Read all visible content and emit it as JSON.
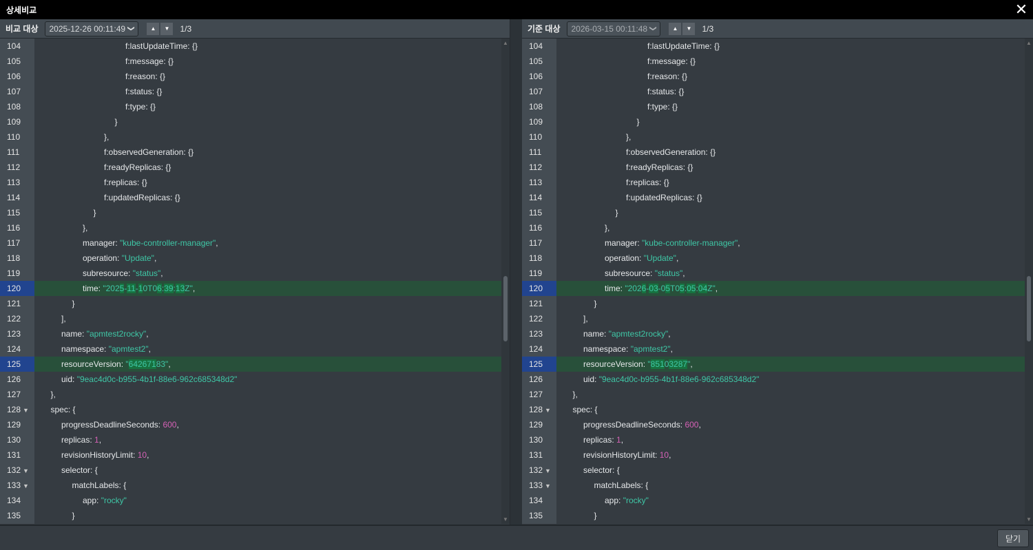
{
  "window": {
    "title": "상세비교",
    "close_icon": "close-icon"
  },
  "left": {
    "label": "비교 대상",
    "selected": "2025-12-26 00:11:49",
    "pager": "1/3",
    "lines": [
      {
        "n": 104,
        "i": 8,
        "k": "f:lastUpdateTime",
        "v": [
          {
            "t": "{}",
            "c": "k"
          }
        ]
      },
      {
        "n": 105,
        "i": 8,
        "k": "f:message",
        "v": [
          {
            "t": "{}",
            "c": "k"
          }
        ]
      },
      {
        "n": 106,
        "i": 8,
        "k": "f:reason",
        "v": [
          {
            "t": "{}",
            "c": "k"
          }
        ]
      },
      {
        "n": 107,
        "i": 8,
        "k": "f:status",
        "v": [
          {
            "t": "{}",
            "c": "k"
          }
        ]
      },
      {
        "n": 108,
        "i": 8,
        "k": "f:type",
        "v": [
          {
            "t": "{}",
            "c": "k"
          }
        ]
      },
      {
        "n": 109,
        "i": 7,
        "raw": "}"
      },
      {
        "n": 110,
        "i": 6,
        "raw": "},"
      },
      {
        "n": 111,
        "i": 6,
        "k": "f:observedGeneration",
        "v": [
          {
            "t": "{}",
            "c": "k"
          }
        ]
      },
      {
        "n": 112,
        "i": 6,
        "k": "f:readyReplicas",
        "v": [
          {
            "t": "{}",
            "c": "k"
          }
        ]
      },
      {
        "n": 113,
        "i": 6,
        "k": "f:replicas",
        "v": [
          {
            "t": "{}",
            "c": "k"
          }
        ]
      },
      {
        "n": 114,
        "i": 6,
        "k": "f:updatedReplicas",
        "v": [
          {
            "t": "{}",
            "c": "k"
          }
        ]
      },
      {
        "n": 115,
        "i": 5,
        "raw": "}"
      },
      {
        "n": 116,
        "i": 4,
        "raw": "},"
      },
      {
        "n": 117,
        "i": 4,
        "k": "manager",
        "v": [
          {
            "t": "\"kube-controller-manager\"",
            "c": "s"
          }
        ],
        "p": ","
      },
      {
        "n": 118,
        "i": 4,
        "k": "operation",
        "v": [
          {
            "t": "\"Update\"",
            "c": "s"
          }
        ],
        "p": ","
      },
      {
        "n": 119,
        "i": 4,
        "k": "subresource",
        "v": [
          {
            "t": "\"status\"",
            "c": "s"
          }
        ],
        "p": ","
      },
      {
        "n": 120,
        "i": 4,
        "k": "time",
        "diff": true,
        "v": [
          {
            "t": "\"202",
            "c": "s"
          },
          {
            "t": "5",
            "c": "s",
            "h": 1
          },
          {
            "t": "-",
            "c": "s"
          },
          {
            "t": "11",
            "c": "s",
            "h": 1
          },
          {
            "t": "-",
            "c": "s"
          },
          {
            "t": "1",
            "c": "s",
            "h": 1
          },
          {
            "t": "0T0",
            "c": "s"
          },
          {
            "t": "6",
            "c": "s",
            "h": 1
          },
          {
            "t": ":",
            "c": "s"
          },
          {
            "t": "39",
            "c": "s",
            "h": 1
          },
          {
            "t": ":",
            "c": "s"
          },
          {
            "t": "13",
            "c": "s",
            "h": 1
          },
          {
            "t": "Z\"",
            "c": "s"
          }
        ],
        "p": ","
      },
      {
        "n": 121,
        "i": 3,
        "raw": "}"
      },
      {
        "n": 122,
        "i": 2,
        "raw": "],"
      },
      {
        "n": 123,
        "i": 2,
        "k": "name",
        "v": [
          {
            "t": "\"apmtest2rocky\"",
            "c": "s"
          }
        ],
        "p": ","
      },
      {
        "n": 124,
        "i": 2,
        "k": "namespace",
        "v": [
          {
            "t": "\"apmtest2\"",
            "c": "s"
          }
        ],
        "p": ","
      },
      {
        "n": 125,
        "i": 2,
        "k": "resourceVersion",
        "diff": true,
        "v": [
          {
            "t": "\"",
            "c": "s"
          },
          {
            "t": "642671",
            "c": "s",
            "h": 1
          },
          {
            "t": "83\"",
            "c": "s"
          }
        ],
        "p": ","
      },
      {
        "n": 126,
        "i": 2,
        "k": "uid",
        "v": [
          {
            "t": "\"9eac4d0c-b955-4b1f-88e6-962c685348d2\"",
            "c": "s"
          }
        ]
      },
      {
        "n": 127,
        "i": 1,
        "raw": "},"
      },
      {
        "n": 128,
        "i": 1,
        "fold": true,
        "k": "spec",
        "v": [
          {
            "t": "{",
            "c": "k"
          }
        ]
      },
      {
        "n": 129,
        "i": 2,
        "k": "progressDeadlineSeconds",
        "v": [
          {
            "t": "600",
            "c": "n"
          }
        ],
        "p": ","
      },
      {
        "n": 130,
        "i": 2,
        "k": "replicas",
        "v": [
          {
            "t": "1",
            "c": "n"
          }
        ],
        "p": ","
      },
      {
        "n": 131,
        "i": 2,
        "k": "revisionHistoryLimit",
        "v": [
          {
            "t": "10",
            "c": "n"
          }
        ],
        "p": ","
      },
      {
        "n": 132,
        "i": 2,
        "fold": true,
        "k": "selector",
        "v": [
          {
            "t": "{",
            "c": "k"
          }
        ]
      },
      {
        "n": 133,
        "i": 3,
        "fold": true,
        "k": "matchLabels",
        "v": [
          {
            "t": "{",
            "c": "k"
          }
        ]
      },
      {
        "n": 134,
        "i": 4,
        "k": "app",
        "v": [
          {
            "t": "\"rocky\"",
            "c": "s"
          }
        ]
      },
      {
        "n": 135,
        "i": 3,
        "raw": "}"
      }
    ]
  },
  "right": {
    "label": "기준 대상",
    "selected": "2026-03-15 00:11:48",
    "pager": "1/3",
    "lines": [
      {
        "n": 104,
        "i": 8,
        "k": "f:lastUpdateTime",
        "v": [
          {
            "t": "{}",
            "c": "k"
          }
        ]
      },
      {
        "n": 105,
        "i": 8,
        "k": "f:message",
        "v": [
          {
            "t": "{}",
            "c": "k"
          }
        ]
      },
      {
        "n": 106,
        "i": 8,
        "k": "f:reason",
        "v": [
          {
            "t": "{}",
            "c": "k"
          }
        ]
      },
      {
        "n": 107,
        "i": 8,
        "k": "f:status",
        "v": [
          {
            "t": "{}",
            "c": "k"
          }
        ]
      },
      {
        "n": 108,
        "i": 8,
        "k": "f:type",
        "v": [
          {
            "t": "{}",
            "c": "k"
          }
        ]
      },
      {
        "n": 109,
        "i": 7,
        "raw": "}"
      },
      {
        "n": 110,
        "i": 6,
        "raw": "},"
      },
      {
        "n": 111,
        "i": 6,
        "k": "f:observedGeneration",
        "v": [
          {
            "t": "{}",
            "c": "k"
          }
        ]
      },
      {
        "n": 112,
        "i": 6,
        "k": "f:readyReplicas",
        "v": [
          {
            "t": "{}",
            "c": "k"
          }
        ]
      },
      {
        "n": 113,
        "i": 6,
        "k": "f:replicas",
        "v": [
          {
            "t": "{}",
            "c": "k"
          }
        ]
      },
      {
        "n": 114,
        "i": 6,
        "k": "f:updatedReplicas",
        "v": [
          {
            "t": "{}",
            "c": "k"
          }
        ]
      },
      {
        "n": 115,
        "i": 5,
        "raw": "}"
      },
      {
        "n": 116,
        "i": 4,
        "raw": "},"
      },
      {
        "n": 117,
        "i": 4,
        "k": "manager",
        "v": [
          {
            "t": "\"kube-controller-manager\"",
            "c": "s"
          }
        ],
        "p": ","
      },
      {
        "n": 118,
        "i": 4,
        "k": "operation",
        "v": [
          {
            "t": "\"Update\"",
            "c": "s"
          }
        ],
        "p": ","
      },
      {
        "n": 119,
        "i": 4,
        "k": "subresource",
        "v": [
          {
            "t": "\"status\"",
            "c": "s"
          }
        ],
        "p": ","
      },
      {
        "n": 120,
        "i": 4,
        "k": "time",
        "diff": true,
        "v": [
          {
            "t": "\"202",
            "c": "s"
          },
          {
            "t": "6",
            "c": "s",
            "h": 1
          },
          {
            "t": "-",
            "c": "s"
          },
          {
            "t": "03",
            "c": "s",
            "h": 1
          },
          {
            "t": "-0",
            "c": "s"
          },
          {
            "t": "5",
            "c": "s",
            "h": 1
          },
          {
            "t": "T0",
            "c": "s"
          },
          {
            "t": "5",
            "c": "s",
            "h": 1
          },
          {
            "t": ":",
            "c": "s"
          },
          {
            "t": "05",
            "c": "s",
            "h": 1
          },
          {
            "t": ":",
            "c": "s"
          },
          {
            "t": "04",
            "c": "s",
            "h": 1
          },
          {
            "t": "Z\"",
            "c": "s"
          }
        ],
        "p": ","
      },
      {
        "n": 121,
        "i": 3,
        "raw": "}"
      },
      {
        "n": 122,
        "i": 2,
        "raw": "],"
      },
      {
        "n": 123,
        "i": 2,
        "k": "name",
        "v": [
          {
            "t": "\"apmtest2rocky\"",
            "c": "s"
          }
        ],
        "p": ","
      },
      {
        "n": 124,
        "i": 2,
        "k": "namespace",
        "v": [
          {
            "t": "\"apmtest2\"",
            "c": "s"
          }
        ],
        "p": ","
      },
      {
        "n": 125,
        "i": 2,
        "k": "resourceVersion",
        "diff": true,
        "v": [
          {
            "t": "\"",
            "c": "s"
          },
          {
            "t": "851",
            "c": "s",
            "h": 1
          },
          {
            "t": "0",
            "c": "s"
          },
          {
            "t": "3287",
            "c": "s",
            "h": 1
          },
          {
            "t": "\"",
            "c": "s"
          }
        ],
        "p": ","
      },
      {
        "n": 126,
        "i": 2,
        "k": "uid",
        "v": [
          {
            "t": "\"9eac4d0c-b955-4b1f-88e6-962c685348d2\"",
            "c": "s"
          }
        ]
      },
      {
        "n": 127,
        "i": 1,
        "raw": "},"
      },
      {
        "n": 128,
        "i": 1,
        "fold": true,
        "k": "spec",
        "v": [
          {
            "t": "{",
            "c": "k"
          }
        ]
      },
      {
        "n": 129,
        "i": 2,
        "k": "progressDeadlineSeconds",
        "v": [
          {
            "t": "600",
            "c": "n"
          }
        ],
        "p": ","
      },
      {
        "n": 130,
        "i": 2,
        "k": "replicas",
        "v": [
          {
            "t": "1",
            "c": "n"
          }
        ],
        "p": ","
      },
      {
        "n": 131,
        "i": 2,
        "k": "revisionHistoryLimit",
        "v": [
          {
            "t": "10",
            "c": "n"
          }
        ],
        "p": ","
      },
      {
        "n": 132,
        "i": 2,
        "fold": true,
        "k": "selector",
        "v": [
          {
            "t": "{",
            "c": "k"
          }
        ]
      },
      {
        "n": 133,
        "i": 3,
        "fold": true,
        "k": "matchLabels",
        "v": [
          {
            "t": "{",
            "c": "k"
          }
        ]
      },
      {
        "n": 134,
        "i": 4,
        "k": "app",
        "v": [
          {
            "t": "\"rocky\"",
            "c": "s"
          }
        ]
      },
      {
        "n": 135,
        "i": 3,
        "raw": "}"
      }
    ]
  },
  "footer": {
    "close_label": "닫기"
  },
  "colors": {
    "string": "#3fc7a6",
    "number": "#d561b6",
    "diff_row": "#28503a",
    "diff_char": "#177240",
    "active_line_number": "#21448f"
  }
}
